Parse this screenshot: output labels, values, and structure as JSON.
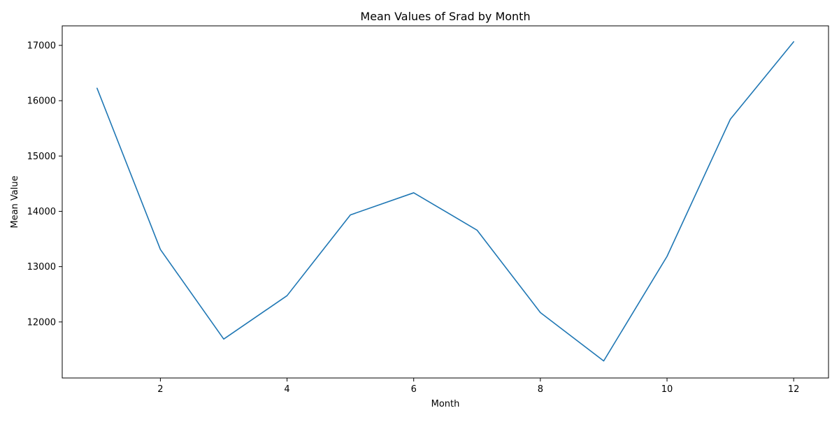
{
  "chart_data": {
    "type": "line",
    "title": "Mean Values of Srad by Month",
    "xlabel": "Month",
    "ylabel": "Mean Value",
    "x": [
      1,
      2,
      3,
      4,
      5,
      6,
      7,
      8,
      9,
      10,
      11,
      12
    ],
    "series": [
      {
        "values": [
          16225,
          13310,
          11690,
          12475,
          13935,
          14335,
          13660,
          12170,
          11295,
          13185,
          15665,
          17065
        ],
        "color": "#1f77b4"
      }
    ],
    "xlim": [
      0.45,
      12.55
    ],
    "ylim": [
      10987,
      17353
    ],
    "xticks": [
      2,
      4,
      6,
      8,
      10,
      12
    ],
    "yticks": [
      12000,
      13000,
      14000,
      15000,
      16000,
      17000
    ],
    "grid": false,
    "legend": false
  }
}
